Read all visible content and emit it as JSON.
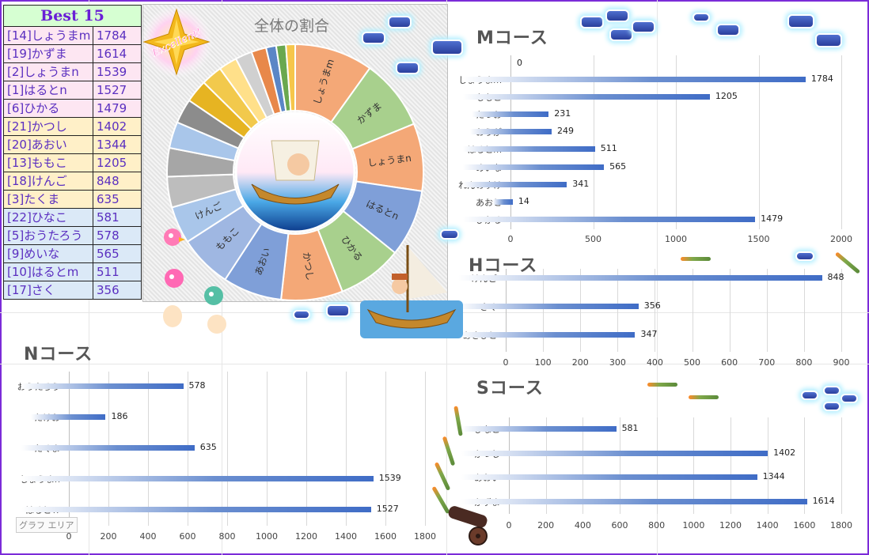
{
  "ranking": {
    "title": "Best 15",
    "rows": [
      {
        "name": "[14]しょうまm",
        "score": "1784",
        "group": "m"
      },
      {
        "name": "[19]かずま",
        "score": "1614",
        "group": "m"
      },
      {
        "name": "[2]しょうまn",
        "score": "1539",
        "group": "m"
      },
      {
        "name": "[1]はるとn",
        "score": "1527",
        "group": "m"
      },
      {
        "name": "[6]ひかる",
        "score": "1479",
        "group": "m"
      },
      {
        "name": "[21]かつし",
        "score": "1402",
        "group": "h"
      },
      {
        "name": "[20]あおい",
        "score": "1344",
        "group": "h"
      },
      {
        "name": "[13]ももこ",
        "score": "1205",
        "group": "h"
      },
      {
        "name": "[18]けんご",
        "score": "848",
        "group": "h"
      },
      {
        "name": "[3]たくま",
        "score": "635",
        "group": "h"
      },
      {
        "name": "[22]ひなこ",
        "score": "581",
        "group": "s"
      },
      {
        "name": "[5]おうたろう",
        "score": "578",
        "group": "s"
      },
      {
        "name": "[9]めいな",
        "score": "565",
        "group": "s"
      },
      {
        "name": "[10]はるとm",
        "score": "511",
        "group": "s"
      },
      {
        "name": "[17]さく",
        "score": "356",
        "group": "s"
      }
    ]
  },
  "badge": {
    "text": "Excellent!"
  },
  "chart_area_label": "グラフ エリア",
  "colors": {
    "frame": "#7b2bd8",
    "bar": "#3f6cc6",
    "rank_title": "#6a1fd6"
  },
  "chart_data": [
    {
      "type": "pie",
      "title": "全体の割合",
      "slices": [
        {
          "label": "しょうまm",
          "value": 1784,
          "color": "#f4a877"
        },
        {
          "label": "かずま",
          "value": 1614,
          "color": "#a8d08d"
        },
        {
          "label": "しょうまn",
          "value": 1539,
          "color": "#f4a877"
        },
        {
          "label": "はるとn",
          "value": 1527,
          "color": "#7f9fd8"
        },
        {
          "label": "ひかる",
          "value": 1479,
          "color": "#a8d08d"
        },
        {
          "label": "かつし",
          "value": 1402,
          "color": "#f4a877"
        },
        {
          "label": "あおい",
          "value": 1344,
          "color": "#7f9fd8"
        },
        {
          "label": "ももこ",
          "value": 1205,
          "color": "#9fb7e2"
        },
        {
          "label": "けんご",
          "value": 848,
          "color": "#a9c6ea"
        },
        {
          "label": "",
          "value": 700,
          "color": "#bdbdbd"
        },
        {
          "label": "",
          "value": 650,
          "color": "#a6a6a6"
        },
        {
          "label": "",
          "value": 600,
          "color": "#a9c6ea"
        },
        {
          "label": "",
          "value": 560,
          "color": "#8c8c8c"
        },
        {
          "label": "",
          "value": 520,
          "color": "#e6b422"
        },
        {
          "label": "",
          "value": 480,
          "color": "#f2c94c"
        },
        {
          "label": "",
          "value": 420,
          "color": "#ffe08a"
        },
        {
          "label": "",
          "value": 380,
          "color": "#d0d0d0"
        },
        {
          "label": "",
          "value": 340,
          "color": "#e8884a"
        },
        {
          "label": "",
          "value": 230,
          "color": "#5b86c6"
        },
        {
          "label": "",
          "value": 220,
          "color": "#6aa84f"
        },
        {
          "label": "",
          "value": 210,
          "color": "#f6c64a"
        }
      ]
    },
    {
      "type": "bar",
      "title": "Mコース",
      "categories": [
        "しょうまm",
        "ももこ",
        "たつお",
        "おうが",
        "はるとm",
        "めいな",
        "れんのすけ",
        "あおと",
        "ひかる"
      ],
      "values": [
        1784,
        1205,
        231,
        249,
        511,
        565,
        341,
        14,
        1479
      ],
      "extra_label": "0",
      "xlim": [
        0,
        2000
      ],
      "xticks": [
        0,
        500,
        1000,
        1500,
        2000
      ]
    },
    {
      "type": "bar",
      "title": "Hコース",
      "categories": [
        "けんご",
        "さく",
        "あさひと"
      ],
      "values": [
        848,
        356,
        347
      ],
      "xlim": [
        0,
        900
      ],
      "xticks": [
        0,
        100,
        200,
        300,
        400,
        500,
        600,
        700,
        800,
        900
      ]
    },
    {
      "type": "bar",
      "title": "Nコース",
      "categories": [
        "おうたろう",
        "たけお",
        "たくま",
        "しょうまn",
        "はるとｎ"
      ],
      "values": [
        578,
        186,
        635,
        1539,
        1527
      ],
      "xlim": [
        0,
        1800
      ],
      "xticks": [
        0,
        200,
        400,
        600,
        800,
        1000,
        1200,
        1400,
        1600,
        1800
      ]
    },
    {
      "type": "bar",
      "title": "Sコース",
      "categories": [
        "ひなこ",
        "かつし",
        "あおい",
        "かずま"
      ],
      "values": [
        581,
        1402,
        1344,
        1614
      ],
      "xlim": [
        0,
        1800
      ],
      "xticks": [
        0,
        200,
        400,
        600,
        800,
        1000,
        1200,
        1400,
        1600,
        1800
      ]
    }
  ]
}
